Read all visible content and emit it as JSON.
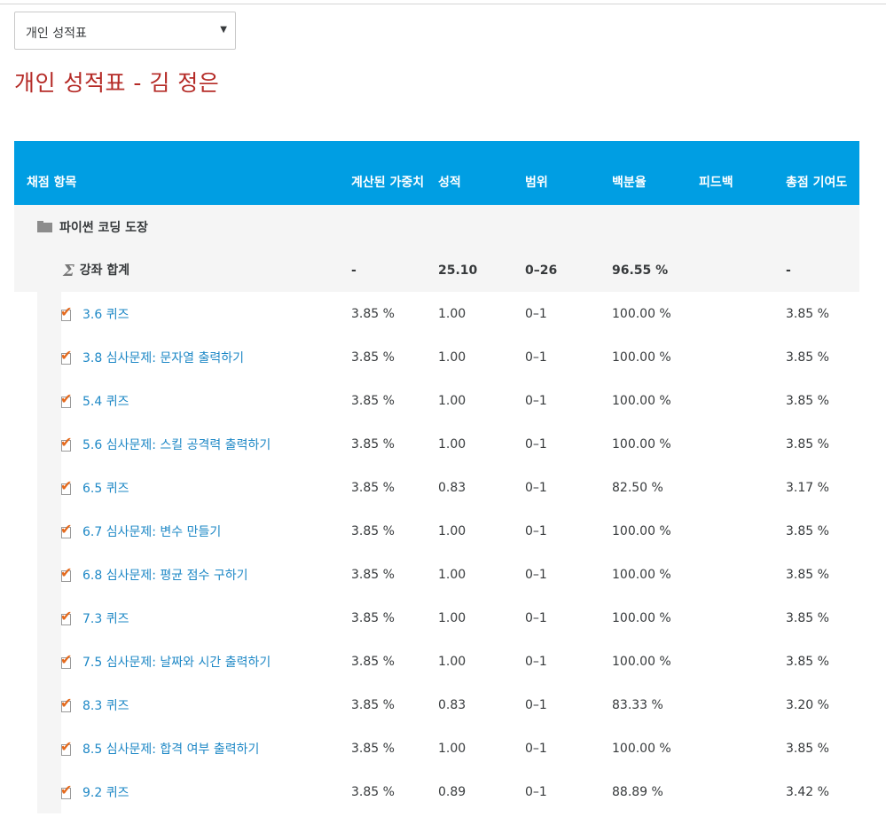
{
  "report_selector": {
    "selected": "개인 성적표"
  },
  "page_title": "개인 성적표 - 김 정은",
  "table": {
    "headers": {
      "item": "채점 항목",
      "weight": "계산된 가중치",
      "grade": "성적",
      "range": "범위",
      "percent": "백분율",
      "feedback": "피드백",
      "contribution": "총점 기여도"
    },
    "category": {
      "name": "파이썬 코딩 도장",
      "icon": "folder-icon"
    },
    "course_total": {
      "label": "강좌 합계",
      "icon": "sigma-icon",
      "weight": "-",
      "grade": "25.10",
      "range": "0–26",
      "percent": "96.55 %",
      "contribution": "-"
    },
    "rows": [
      {
        "name": "3.6 퀴즈",
        "weight": "3.85 %",
        "grade": "1.00",
        "range": "0–1",
        "percent": "100.00 %",
        "feedback": "",
        "contribution": "3.85 %"
      },
      {
        "name": "3.8 심사문제: 문자열 출력하기",
        "weight": "3.85 %",
        "grade": "1.00",
        "range": "0–1",
        "percent": "100.00 %",
        "feedback": "",
        "contribution": "3.85 %"
      },
      {
        "name": "5.4 퀴즈",
        "weight": "3.85 %",
        "grade": "1.00",
        "range": "0–1",
        "percent": "100.00 %",
        "feedback": "",
        "contribution": "3.85 %"
      },
      {
        "name": "5.6 심사문제: 스킬 공격력 출력하기",
        "weight": "3.85 %",
        "grade": "1.00",
        "range": "0–1",
        "percent": "100.00 %",
        "feedback": "",
        "contribution": "3.85 %"
      },
      {
        "name": "6.5 퀴즈",
        "weight": "3.85 %",
        "grade": "0.83",
        "range": "0–1",
        "percent": "82.50 %",
        "feedback": "",
        "contribution": "3.17 %"
      },
      {
        "name": "6.7 심사문제: 변수 만들기",
        "weight": "3.85 %",
        "grade": "1.00",
        "range": "0–1",
        "percent": "100.00 %",
        "feedback": "",
        "contribution": "3.85 %"
      },
      {
        "name": "6.8 심사문제: 평균 점수 구하기",
        "weight": "3.85 %",
        "grade": "1.00",
        "range": "0–1",
        "percent": "100.00 %",
        "feedback": "",
        "contribution": "3.85 %"
      },
      {
        "name": "7.3 퀴즈",
        "weight": "3.85 %",
        "grade": "1.00",
        "range": "0–1",
        "percent": "100.00 %",
        "feedback": "",
        "contribution": "3.85 %"
      },
      {
        "name": "7.5 심사문제: 날짜와 시간 출력하기",
        "weight": "3.85 %",
        "grade": "1.00",
        "range": "0–1",
        "percent": "100.00 %",
        "feedback": "",
        "contribution": "3.85 %"
      },
      {
        "name": "8.3 퀴즈",
        "weight": "3.85 %",
        "grade": "0.83",
        "range": "0–1",
        "percent": "83.33 %",
        "feedback": "",
        "contribution": "3.20 %"
      },
      {
        "name": "8.5 심사문제: 합격 여부 출력하기",
        "weight": "3.85 %",
        "grade": "1.00",
        "range": "0–1",
        "percent": "100.00 %",
        "feedback": "",
        "contribution": "3.85 %"
      },
      {
        "name": "9.2 퀴즈",
        "weight": "3.85 %",
        "grade": "0.89",
        "range": "0–1",
        "percent": "88.89 %",
        "feedback": "",
        "contribution": "3.42 %"
      }
    ]
  },
  "colors": {
    "header_bg": "#009ee3",
    "title": "#b52b27",
    "link": "#1e88c6",
    "check": "#e46a1e"
  }
}
